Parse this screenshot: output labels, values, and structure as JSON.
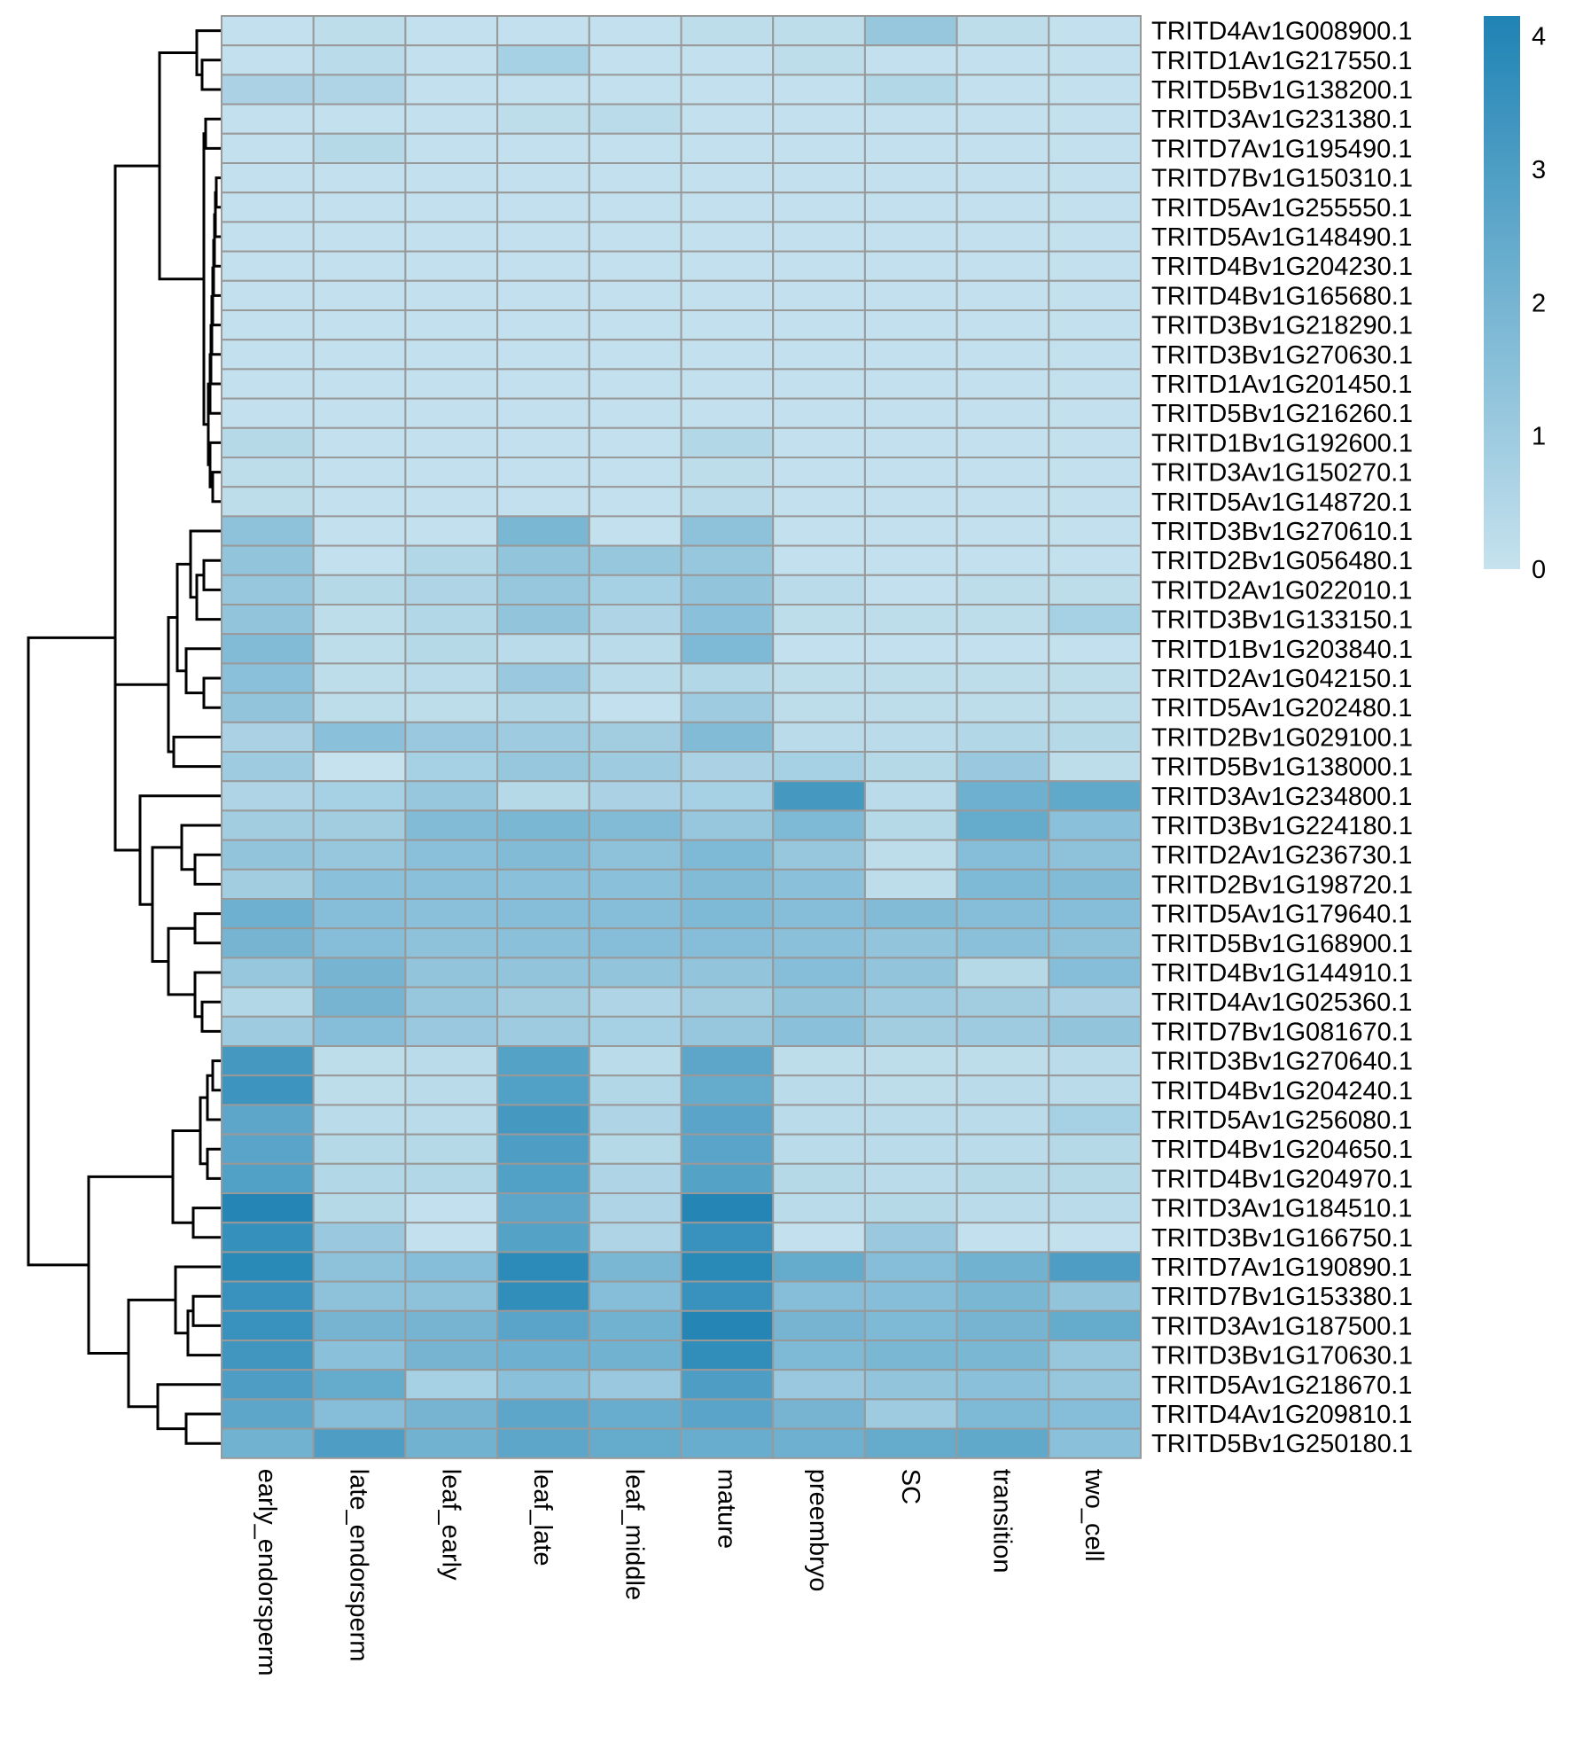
{
  "chart_data": {
    "type": "heatmap",
    "title": "",
    "columns": [
      "early_endorsperm",
      "late_endorsperm",
      "leaf_early",
      "leaf_late",
      "leaf_middle",
      "mature",
      "preembryo",
      "SC",
      "transition",
      "two_cell"
    ],
    "rows": [
      {
        "label": "TRITD4Av1G008900.1",
        "values": [
          0.1,
          0.2,
          0.1,
          0.1,
          0.1,
          0.2,
          0.2,
          1.2,
          0.2,
          0.1
        ]
      },
      {
        "label": "TRITD1Av1G217550.1",
        "values": [
          0.1,
          0.3,
          0.1,
          0.8,
          0.1,
          0.1,
          0.2,
          0.1,
          0.1,
          0.1
        ]
      },
      {
        "label": "TRITD5Bv1G138200.1",
        "values": [
          0.7,
          0.6,
          0.1,
          0.1,
          0.1,
          0.1,
          0.1,
          0.5,
          0.1,
          0.1
        ]
      },
      {
        "label": "TRITD3Av1G231380.1",
        "values": [
          0.1,
          0.1,
          0.1,
          0.2,
          0.3,
          0.1,
          0.1,
          0.1,
          0.1,
          0.1
        ]
      },
      {
        "label": "TRITD7Av1G195490.1",
        "values": [
          0.1,
          0.4,
          0.1,
          0.1,
          0.1,
          0.1,
          0.1,
          0.1,
          0.1,
          0.1
        ]
      },
      {
        "label": "TRITD7Bv1G150310.1",
        "values": [
          0.1,
          0.1,
          0.1,
          0.1,
          0.1,
          0.1,
          0.1,
          0.1,
          0.1,
          0.1
        ]
      },
      {
        "label": "TRITD5Av1G255550.1",
        "values": [
          0.1,
          0.1,
          0.1,
          0.1,
          0.1,
          0.1,
          0.1,
          0.1,
          0.1,
          0.1
        ]
      },
      {
        "label": "TRITD5Av1G148490.1",
        "values": [
          0.1,
          0.1,
          0.1,
          0.1,
          0.1,
          0.1,
          0.1,
          0.1,
          0.1,
          0.1
        ]
      },
      {
        "label": "TRITD4Bv1G204230.1",
        "values": [
          0.1,
          0.1,
          0.1,
          0.1,
          0.1,
          0.1,
          0.1,
          0.1,
          0.1,
          0.1
        ]
      },
      {
        "label": "TRITD4Bv1G165680.1",
        "values": [
          0.1,
          0.1,
          0.1,
          0.1,
          0.1,
          0.1,
          0.1,
          0.1,
          0.1,
          0.1
        ]
      },
      {
        "label": "TRITD3Bv1G218290.1",
        "values": [
          0.1,
          0.1,
          0.1,
          0.1,
          0.1,
          0.1,
          0.1,
          0.1,
          0.1,
          0.1
        ]
      },
      {
        "label": "TRITD3Bv1G270630.1",
        "values": [
          0.1,
          0.1,
          0.1,
          0.1,
          0.1,
          0.1,
          0.1,
          0.1,
          0.1,
          0.1
        ]
      },
      {
        "label": "TRITD1Av1G201450.1",
        "values": [
          0.1,
          0.1,
          0.1,
          0.1,
          0.1,
          0.1,
          0.1,
          0.1,
          0.1,
          0.1
        ]
      },
      {
        "label": "TRITD5Bv1G216260.1",
        "values": [
          0.1,
          0.1,
          0.1,
          0.1,
          0.1,
          0.1,
          0.1,
          0.1,
          0.1,
          0.1
        ]
      },
      {
        "label": "TRITD1Bv1G192600.1",
        "values": [
          0.4,
          0.1,
          0.1,
          0.1,
          0.1,
          0.5,
          0.1,
          0.1,
          0.1,
          0.1
        ]
      },
      {
        "label": "TRITD3Av1G150270.1",
        "values": [
          0.2,
          0.1,
          0.1,
          0.1,
          0.1,
          0.2,
          0.1,
          0.1,
          0.1,
          0.1
        ]
      },
      {
        "label": "TRITD5Av1G148720.1",
        "values": [
          0.2,
          0.1,
          0.1,
          0.1,
          0.1,
          0.3,
          0.1,
          0.1,
          0.1,
          0.1
        ]
      },
      {
        "label": "TRITD3Bv1G270610.1",
        "values": [
          1.4,
          0.1,
          0.1,
          1.9,
          0.1,
          1.4,
          0.1,
          0.1,
          0.1,
          0.1
        ]
      },
      {
        "label": "TRITD2Bv1G056480.1",
        "values": [
          1.3,
          0.1,
          0.5,
          1.3,
          1.2,
          1.2,
          0.1,
          0.1,
          0.1,
          0.1
        ]
      },
      {
        "label": "TRITD2Av1G022010.1",
        "values": [
          1.2,
          0.4,
          0.6,
          1.2,
          0.8,
          1.3,
          0.3,
          0.1,
          0.2,
          0.2
        ]
      },
      {
        "label": "TRITD3Bv1G133150.1",
        "values": [
          1.3,
          0.2,
          0.5,
          1.3,
          0.6,
          1.5,
          0.2,
          0.2,
          0.2,
          0.8
        ]
      },
      {
        "label": "TRITD1Bv1G203840.1",
        "values": [
          1.7,
          0.2,
          0.4,
          0.3,
          0.3,
          1.8,
          0.1,
          0.1,
          0.1,
          0.1
        ]
      },
      {
        "label": "TRITD2Av1G042150.1",
        "values": [
          1.5,
          0.2,
          0.3,
          1.1,
          0.3,
          0.5,
          0.2,
          0.2,
          0.2,
          0.2
        ]
      },
      {
        "label": "TRITD5Av1G202480.1",
        "values": [
          1.3,
          0.2,
          0.2,
          0.5,
          0.1,
          1.0,
          0.2,
          0.2,
          0.2,
          0.2
        ]
      },
      {
        "label": "TRITD2Bv1G029100.1",
        "values": [
          0.7,
          1.5,
          1.1,
          1.0,
          0.9,
          1.7,
          0.3,
          0.3,
          0.5,
          0.4
        ]
      },
      {
        "label": "TRITD5Bv1G138000.1",
        "values": [
          1.0,
          0.0,
          0.8,
          1.2,
          1.0,
          0.7,
          0.8,
          0.4,
          1.1,
          0.2
        ]
      },
      {
        "label": "TRITD3Av1G234800.1",
        "values": [
          0.6,
          0.8,
          1.2,
          0.4,
          0.7,
          0.8,
          3.2,
          0.3,
          2.2,
          2.5
        ]
      },
      {
        "label": "TRITD3Bv1G224180.1",
        "values": [
          0.9,
          0.9,
          1.7,
          1.9,
          1.7,
          1.2,
          1.8,
          0.4,
          2.4,
          1.5
        ]
      },
      {
        "label": "TRITD2Av1G236730.1",
        "values": [
          1.3,
          1.2,
          1.5,
          1.7,
          1.4,
          1.8,
          1.2,
          0.2,
          1.6,
          1.4
        ]
      },
      {
        "label": "TRITD2Bv1G198720.1",
        "values": [
          0.9,
          1.5,
          1.5,
          1.5,
          1.5,
          1.7,
          1.5,
          0.2,
          1.8,
          1.7
        ]
      },
      {
        "label": "TRITD5Av1G179640.1",
        "values": [
          2.2,
          1.6,
          1.5,
          1.6,
          1.6,
          1.8,
          1.6,
          1.7,
          1.6,
          1.6
        ]
      },
      {
        "label": "TRITD5Bv1G168900.1",
        "values": [
          2.0,
          1.6,
          1.4,
          1.5,
          1.6,
          1.6,
          1.5,
          1.3,
          1.5,
          1.4
        ]
      },
      {
        "label": "TRITD4Bv1G144910.1",
        "values": [
          1.2,
          2.0,
          1.3,
          1.3,
          1.3,
          1.3,
          1.6,
          1.3,
          0.4,
          1.6
        ]
      },
      {
        "label": "TRITD4Av1G025360.1",
        "values": [
          0.5,
          2.0,
          1.2,
          0.9,
          0.6,
          0.9,
          1.3,
          1.0,
          0.9,
          0.7
        ]
      },
      {
        "label": "TRITD7Bv1G081670.1",
        "values": [
          1.0,
          1.6,
          1.1,
          1.0,
          0.8,
          1.2,
          1.5,
          0.9,
          1.0,
          1.3
        ]
      },
      {
        "label": "TRITD3Bv1G270640.1",
        "values": [
          3.2,
          0.2,
          0.3,
          2.8,
          0.3,
          2.6,
          0.2,
          0.2,
          0.2,
          0.3
        ]
      },
      {
        "label": "TRITD4Bv1G204240.1",
        "values": [
          3.4,
          0.2,
          0.3,
          2.9,
          0.5,
          2.4,
          0.3,
          0.2,
          0.3,
          0.3
        ]
      },
      {
        "label": "TRITD5Av1G256080.1",
        "values": [
          2.6,
          0.3,
          0.3,
          3.2,
          0.6,
          2.7,
          0.3,
          0.3,
          0.3,
          0.8
        ]
      },
      {
        "label": "TRITD4Bv1G204650.1",
        "values": [
          2.7,
          0.4,
          0.4,
          3.0,
          0.4,
          2.7,
          0.3,
          0.3,
          0.3,
          0.4
        ]
      },
      {
        "label": "TRITD4Bv1G204970.1",
        "values": [
          2.9,
          0.5,
          0.5,
          2.9,
          0.6,
          2.8,
          0.4,
          0.3,
          0.4,
          0.4
        ]
      },
      {
        "label": "TRITD3Av1G184510.1",
        "values": [
          4.0,
          0.4,
          0.1,
          2.6,
          0.6,
          4.0,
          0.3,
          0.4,
          0.3,
          0.3
        ]
      },
      {
        "label": "TRITD3Bv1G166750.1",
        "values": [
          3.6,
          1.1,
          0.1,
          2.8,
          0.6,
          3.5,
          0.1,
          1.1,
          0.1,
          0.1
        ]
      },
      {
        "label": "TRITD7Av1G190890.1",
        "values": [
          3.9,
          1.4,
          1.6,
          3.8,
          1.9,
          3.9,
          2.4,
          1.6,
          2.1,
          3.0
        ]
      },
      {
        "label": "TRITD7Bv1G153380.1",
        "values": [
          3.5,
          1.4,
          1.4,
          3.7,
          1.6,
          3.5,
          1.6,
          1.6,
          1.9,
          1.3
        ]
      },
      {
        "label": "TRITD3Av1G187500.1",
        "values": [
          3.5,
          2.0,
          2.0,
          2.7,
          2.1,
          4.0,
          2.0,
          1.8,
          2.0,
          2.4
        ]
      },
      {
        "label": "TRITD3Bv1G170630.1",
        "values": [
          3.3,
          1.5,
          2.0,
          2.2,
          2.1,
          3.7,
          1.8,
          1.9,
          1.9,
          1.2
        ]
      },
      {
        "label": "TRITD5Av1G218670.1",
        "values": [
          3.0,
          2.4,
          0.8,
          1.5,
          1.1,
          3.0,
          1.1,
          1.3,
          1.5,
          1.2
        ]
      },
      {
        "label": "TRITD4Av1G209810.1",
        "values": [
          2.6,
          1.6,
          2.0,
          2.6,
          2.3,
          2.7,
          2.0,
          1.0,
          1.8,
          1.6
        ]
      },
      {
        "label": "TRITD5Bv1G250180.1",
        "values": [
          2.1,
          3.0,
          2.1,
          2.6,
          2.4,
          2.3,
          2.2,
          2.4,
          2.5,
          1.5
        ]
      }
    ],
    "color_scale": {
      "min": 0,
      "max": 4.15,
      "low_color": "#c6e2ee",
      "high_color": "#1f83b4"
    },
    "legend_ticks": [
      "0",
      "1",
      "2",
      "3",
      "4"
    ],
    "legend_position": "top-right",
    "cell_border_color": "#999999",
    "row_dendrogram": true
  }
}
